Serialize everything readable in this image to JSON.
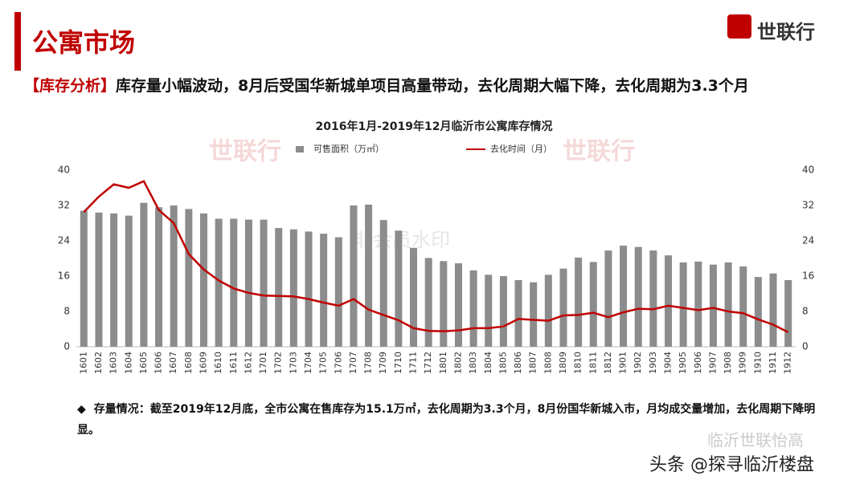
{
  "header": {
    "title": "公寓市场",
    "logo": "世联行",
    "tag": "【库存分析】",
    "subtitle": "库存量小幅波动，8月后受国华新城单项目高量带动，去化周期大幅下降，去化周期为3.3个月"
  },
  "chart_data": {
    "type": "bar",
    "title": "2016年1月-2019年12月临沂市公寓库存情况",
    "categories": [
      "1601",
      "1602",
      "1603",
      "1604",
      "1605",
      "1606",
      "1607",
      "1608",
      "1609",
      "1610",
      "1611",
      "1612",
      "1701",
      "1702",
      "1703",
      "1704",
      "1705",
      "1706",
      "1707",
      "1708",
      "1709",
      "1710",
      "1711",
      "1712",
      "1801",
      "1802",
      "1803",
      "1804",
      "1805",
      "1806",
      "1807",
      "1808",
      "1809",
      "1810",
      "1811",
      "1812",
      "1901",
      "1902",
      "1903",
      "1904",
      "1905",
      "1906",
      "1907",
      "1908",
      "1909",
      "1910",
      "1911",
      "1912"
    ],
    "series": [
      {
        "name": "可售面积（万㎡）",
        "type": "bar",
        "color": "#8c8c8c",
        "values": [
          30.8,
          30.4,
          30.2,
          29.7,
          32.6,
          31.6,
          32.0,
          31.2,
          30.2,
          29.0,
          29.0,
          28.8,
          28.8,
          26.9,
          26.6,
          26.1,
          25.6,
          24.8,
          32.0,
          32.2,
          28.7,
          26.3,
          22.4,
          20.1,
          19.4,
          18.9,
          17.3,
          16.3,
          16.0,
          15.1,
          14.6,
          16.3,
          17.7,
          20.2,
          19.2,
          21.8,
          22.9,
          22.6,
          21.8,
          20.7,
          19.1,
          19.3,
          18.6,
          19.1,
          18.2,
          15.8,
          16.6,
          15.1
        ]
      },
      {
        "name": "去化时间（月）",
        "type": "line",
        "axis": "y2",
        "color": "#c00000",
        "values": [
          30.5,
          34.0,
          36.8,
          36.0,
          37.5,
          31.0,
          28.0,
          21.0,
          17.5,
          15.0,
          13.2,
          12.2,
          11.6,
          11.5,
          11.4,
          10.8,
          10.0,
          9.3,
          10.8,
          8.4,
          7.2,
          6.0,
          4.2,
          3.6,
          3.5,
          3.7,
          4.2,
          4.2,
          4.6,
          6.3,
          6.1,
          5.9,
          7.1,
          7.2,
          7.7,
          6.7,
          7.8,
          8.6,
          8.5,
          9.3,
          8.8,
          8.3,
          8.8,
          8.0,
          7.6,
          6.2,
          5.0,
          3.3
        ]
      }
    ],
    "ylim": [
      0,
      40
    ],
    "yticks": [
      0,
      8,
      16,
      24,
      32,
      40
    ],
    "y2lim": [
      0,
      40
    ],
    "y2ticks": [
      0,
      8,
      16,
      24,
      32,
      40
    ]
  },
  "note": {
    "bullet": "存量情况：截至2019年12月底，全市公寓在售库存为15.1万㎡，去化周期为3.3个月，8月份国华新城入市，月均成交量增加，去化周期下降明显。"
  },
  "watermarks": [
    "世联行",
    "非会员水印",
    "临沂世联怡高",
    "头条 @探寻临沂楼盘"
  ]
}
